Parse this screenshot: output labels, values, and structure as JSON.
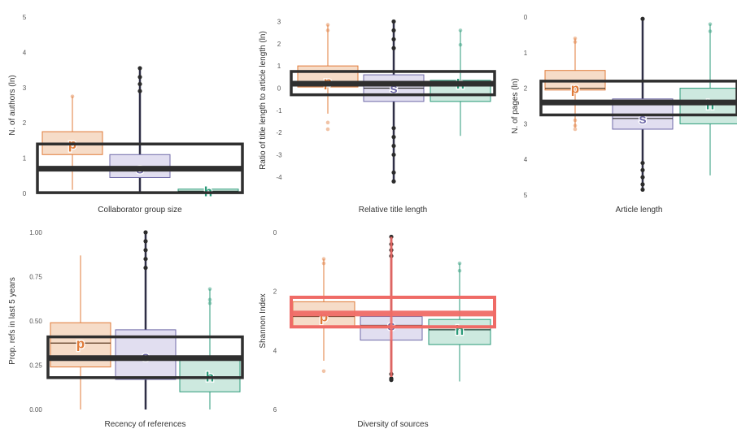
{
  "colors": {
    "p": "#e07b39",
    "s": "#6f6aa8",
    "h": "#2a9a78",
    "p_fill": "#f6dcc8",
    "s_fill": "#e1def0",
    "h_fill": "#cde9df",
    "overall": "#2f2f2f",
    "highlight": "#ef6b66",
    "dark_p": "#5a3a22",
    "dark_h": "#1e4035",
    "tick": "#555555"
  },
  "chart_data": [
    {
      "type": "boxplot",
      "xlabel": "Collaborator group size",
      "ylabel": "N. of authors (ln)",
      "ylim": [
        0,
        5
      ],
      "yticks": [
        "0",
        "1",
        "2",
        "3",
        "4",
        "5"
      ],
      "reversed": false,
      "groups": [
        {
          "label": "p",
          "q1": 1.1,
          "median": 1.4,
          "q3": 1.75,
          "wlo": 0.1,
          "whi": 2.75,
          "outliers": [
            2.75
          ]
        },
        {
          "label": "s",
          "q1": 0.45,
          "median": 0.7,
          "q3": 1.1,
          "wlo": 0.05,
          "whi": 3.55,
          "outliers": [
            3.55,
            3.3,
            3.1,
            2.9
          ]
        },
        {
          "label": "h",
          "q1": 0.02,
          "median": 0.06,
          "q3": 0.12,
          "wlo": 0.0,
          "whi": 0.14,
          "outliers": []
        }
      ],
      "overall": {
        "q1": 0.02,
        "median": 0.7,
        "q3": 1.4,
        "highlight": false
      }
    },
    {
      "type": "boxplot",
      "xlabel": "Relative title length",
      "ylabel": "Ratio of title length to article length (ln)",
      "ylim": [
        -4.3,
        3.2
      ],
      "yticks": [
        "-4",
        "-3",
        "-2",
        "-1",
        "0",
        "1",
        "2",
        "3"
      ],
      "reversed": false,
      "groups": [
        {
          "label": "p",
          "q1": 0.05,
          "median": 0.3,
          "q3": 1.0,
          "wlo": -1.15,
          "whi": 2.85,
          "outliers": [
            2.85,
            2.6,
            -1.55,
            -1.85
          ]
        },
        {
          "label": "s",
          "q1": -0.6,
          "median": 0.0,
          "q3": 0.6,
          "wlo": -4.2,
          "whi": 3.0,
          "outliers": [
            3.0,
            2.6,
            2.2,
            1.8,
            -1.8,
            -2.2,
            -2.6,
            -3.0,
            -3.8,
            -4.2
          ]
        },
        {
          "label": "h",
          "q1": -0.6,
          "median": 0.2,
          "q3": 0.35,
          "wlo": -2.15,
          "whi": 2.6,
          "outliers": [
            2.6,
            1.95
          ]
        }
      ],
      "overall": {
        "q1": -0.3,
        "median": 0.2,
        "q3": 0.75,
        "highlight": false
      }
    },
    {
      "type": "boxplot",
      "xlabel": "Article length",
      "ylabel": "N. of pages (ln)",
      "ylim": [
        0,
        5
      ],
      "yticks": [
        "0",
        "1",
        "2",
        "3",
        "4",
        "5"
      ],
      "reversed": true,
      "groups": [
        {
          "label": "p",
          "q1": 1.5,
          "median": 2.0,
          "q3": 2.05,
          "wlo": 0.6,
          "whi": 3.1,
          "outliers": [
            0.6,
            0.7,
            2.9,
            3.05,
            3.15
          ]
        },
        {
          "label": "s",
          "q1": 2.3,
          "median": 2.85,
          "q3": 3.15,
          "wlo": 0.05,
          "whi": 4.85,
          "outliers": [
            0.05,
            4.1,
            4.3,
            4.5,
            4.7,
            4.85
          ]
        },
        {
          "label": "h",
          "q1": 2.0,
          "median": 2.45,
          "q3": 3.0,
          "wlo": 0.2,
          "whi": 4.45,
          "outliers": [
            0.2,
            0.4
          ]
        }
      ],
      "overall": {
        "q1": 1.8,
        "median": 2.4,
        "q3": 2.75,
        "highlight": false
      }
    },
    {
      "type": "boxplot",
      "xlabel": "Recency of references",
      "ylabel": "Prop. refs in last 5 years",
      "ylim": [
        0,
        1
      ],
      "yticks": [
        "0.00",
        "0.25",
        "0.50",
        "0.75",
        "1.00"
      ],
      "reversed": false,
      "groups": [
        {
          "label": "p",
          "q1": 0.24,
          "median": 0.375,
          "q3": 0.49,
          "wlo": 0.0,
          "whi": 0.87,
          "outliers": []
        },
        {
          "label": "s",
          "q1": 0.17,
          "median": 0.3,
          "q3": 0.45,
          "wlo": 0.0,
          "whi": 1.0,
          "outliers": [
            1.0,
            0.95,
            0.9,
            0.85,
            0.8
          ]
        },
        {
          "label": "h",
          "q1": 0.1,
          "median": 0.185,
          "q3": 0.29,
          "wlo": 0.0,
          "whi": 0.68,
          "outliers": [
            0.68,
            0.62,
            0.6
          ]
        }
      ],
      "overall": {
        "q1": 0.18,
        "median": 0.29,
        "q3": 0.41,
        "highlight": false
      }
    },
    {
      "type": "boxplot",
      "xlabel": "Diversity of sources",
      "ylabel": "Shannon Index",
      "ylim": [
        0,
        6
      ],
      "yticks": [
        "0",
        "2",
        "4",
        "6"
      ],
      "reversed": true,
      "groups": [
        {
          "label": "p",
          "q1": 2.35,
          "median": 2.85,
          "q3": 3.2,
          "wlo": 0.9,
          "whi": 4.35,
          "outliers": [
            0.9,
            1.05,
            4.7
          ]
        },
        {
          "label": "s",
          "q1": 2.85,
          "median": 3.15,
          "q3": 3.65,
          "wlo": 0.15,
          "whi": 4.9,
          "outliers": [
            0.15,
            0.4,
            0.6,
            0.8,
            4.8,
            4.95,
            5.0
          ]
        },
        {
          "label": "h",
          "q1": 2.95,
          "median": 3.3,
          "q3": 3.8,
          "wlo": 1.05,
          "whi": 5.05,
          "outliers": [
            1.05,
            1.3
          ]
        }
      ],
      "overall": {
        "q1": 2.2,
        "median": 2.75,
        "q3": 3.2,
        "highlight": true
      }
    }
  ]
}
